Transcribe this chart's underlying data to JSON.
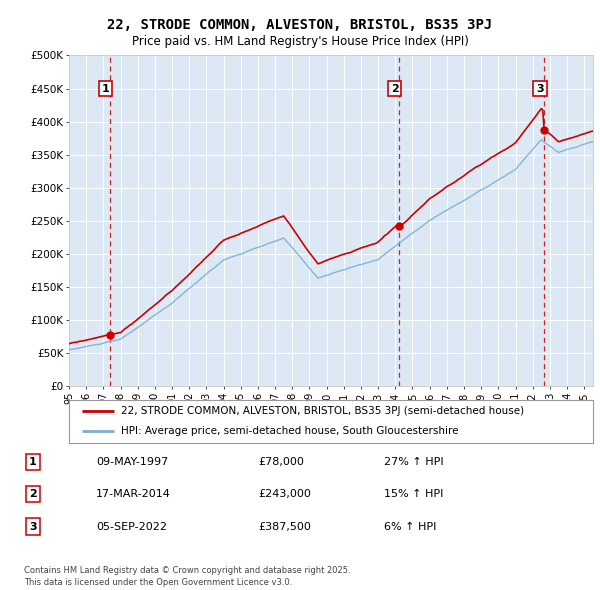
{
  "title": "22, STRODE COMMON, ALVESTON, BRISTOL, BS35 3PJ",
  "subtitle": "Price paid vs. HM Land Registry's House Price Index (HPI)",
  "legend_line1": "22, STRODE COMMON, ALVESTON, BRISTOL, BS35 3PJ (semi-detached house)",
  "legend_line2": "HPI: Average price, semi-detached house, South Gloucestershire",
  "footer1": "Contains HM Land Registry data © Crown copyright and database right 2025.",
  "footer2": "This data is licensed under the Open Government Licence v3.0.",
  "ylim": [
    0,
    500000
  ],
  "yticks": [
    0,
    50000,
    100000,
    150000,
    200000,
    250000,
    300000,
    350000,
    400000,
    450000,
    500000
  ],
  "ytick_labels": [
    "£0",
    "£50K",
    "£100K",
    "£150K",
    "£200K",
    "£250K",
    "£300K",
    "£350K",
    "£400K",
    "£450K",
    "£500K"
  ],
  "background_color": "#dce9f5",
  "sale_color": "#cc0000",
  "hpi_color": "#7bafd4",
  "dashed_line_color": "#cc0000",
  "transactions": [
    {
      "label": "1",
      "date": "09-MAY-1997",
      "price": 78000,
      "x": 1997.36
    },
    {
      "label": "2",
      "date": "17-MAR-2014",
      "price": 243000,
      "x": 2014.21
    },
    {
      "label": "3",
      "date": "05-SEP-2022",
      "price": 387500,
      "x": 2022.68
    }
  ],
  "table_rows": [
    {
      "num": "1",
      "date": "09-MAY-1997",
      "price": "£78,000",
      "pct": "27% ↑ HPI"
    },
    {
      "num": "2",
      "date": "17-MAR-2014",
      "price": "£243,000",
      "pct": "15% ↑ HPI"
    },
    {
      "num": "3",
      "date": "05-SEP-2022",
      "price": "£387,500",
      "pct": "6% ↑ HPI"
    }
  ],
  "xlim": [
    1995,
    2025.5
  ],
  "xtick_years": [
    1995,
    1996,
    1997,
    1998,
    1999,
    2000,
    2001,
    2002,
    2003,
    2004,
    2005,
    2006,
    2007,
    2008,
    2009,
    2010,
    2011,
    2012,
    2013,
    2014,
    2015,
    2016,
    2017,
    2018,
    2019,
    2020,
    2021,
    2022,
    2023,
    2024,
    2025
  ]
}
